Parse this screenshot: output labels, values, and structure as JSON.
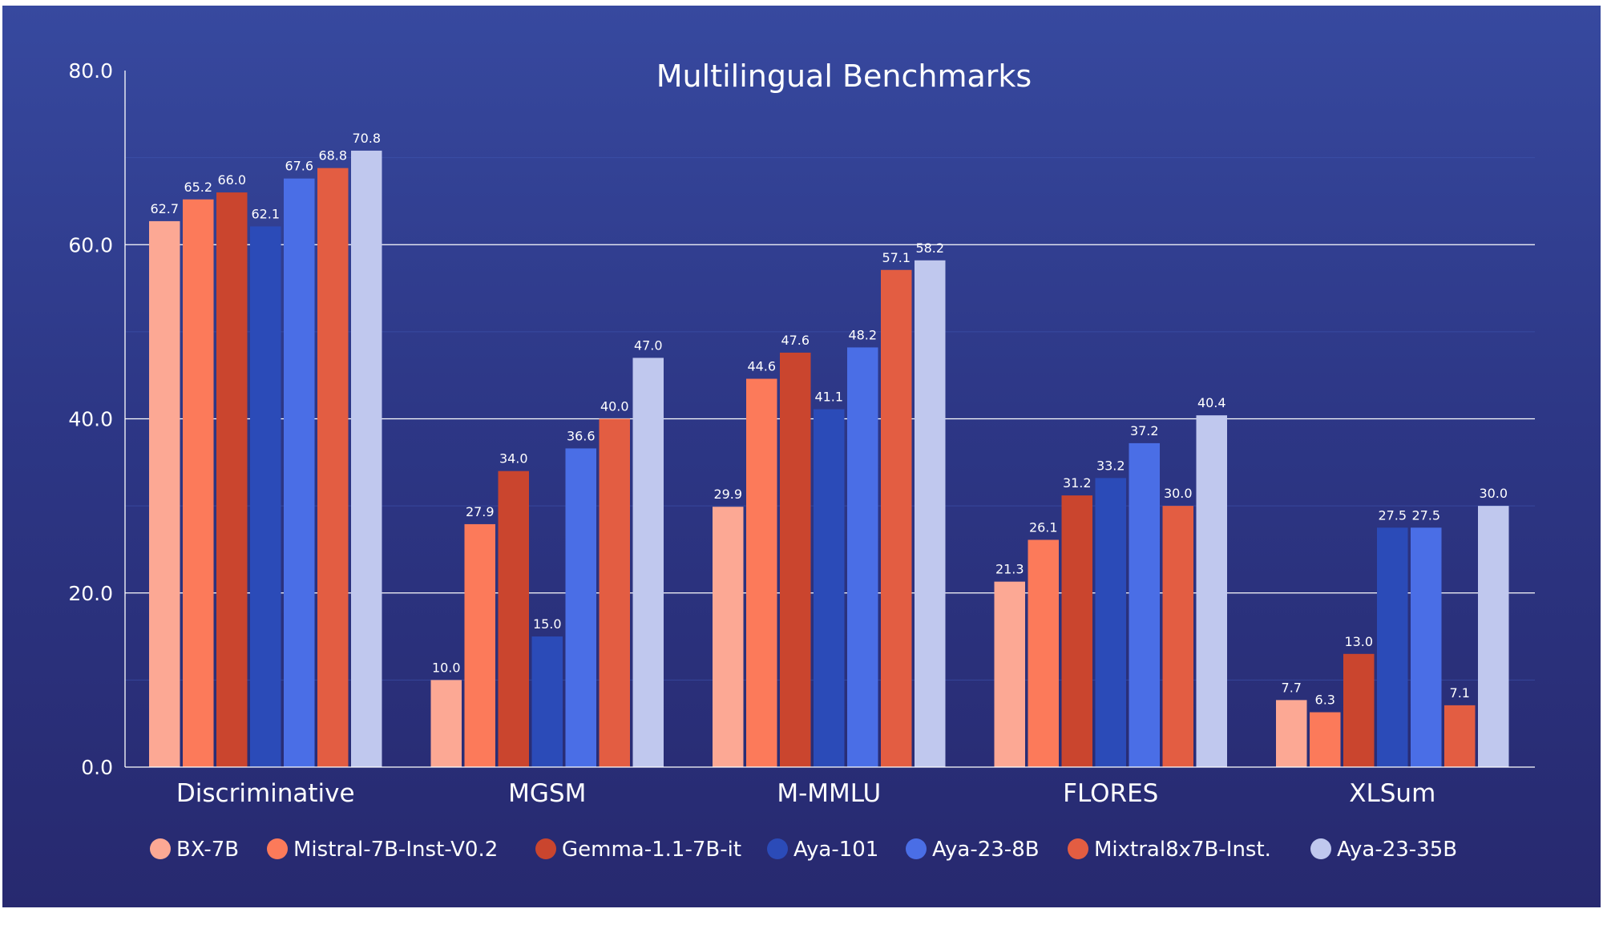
{
  "chart_data": {
    "type": "bar",
    "title": "Multilingual Benchmarks",
    "xlabel": "",
    "ylabel": "",
    "ylim": [
      0,
      80
    ],
    "yticks": [
      "0.0",
      "20.0",
      "40.0",
      "60.0",
      "80.0"
    ],
    "grid": true,
    "legend_position": "bottom",
    "categories": [
      "Discriminative",
      "MGSM",
      "M-MMLU",
      "FLORES",
      "XLSum"
    ],
    "series": [
      {
        "name": "BX-7B",
        "color": "#fca894",
        "values": [
          62.7,
          10.0,
          29.9,
          21.3,
          7.7
        ],
        "labels": [
          "62.7",
          "10.0",
          "29.9",
          "21.3",
          "7.7"
        ]
      },
      {
        "name": "Mistral-7B-Inst-V0.2",
        "color": "#fc7a5a",
        "values": [
          65.2,
          27.9,
          44.6,
          26.1,
          6.3
        ],
        "labels": [
          "65.2",
          "27.9",
          "44.6",
          "26.1",
          "6.3"
        ]
      },
      {
        "name": "Gemma-1.1-7B-it",
        "color": "#ca452e",
        "values": [
          66.0,
          34.0,
          47.6,
          31.2,
          13.0
        ],
        "labels": [
          "66.0",
          "34.0",
          "47.6",
          "31.2",
          "13.0"
        ]
      },
      {
        "name": "Aya-101",
        "color": "#2b4bb8",
        "values": [
          62.1,
          15.0,
          41.1,
          33.2,
          27.5
        ],
        "labels": [
          "62.1",
          "15.0",
          "41.1",
          "33.2",
          "27.5"
        ]
      },
      {
        "name": "Aya-23-8B",
        "color": "#4a6ee6",
        "values": [
          67.6,
          36.6,
          48.2,
          37.2,
          27.5
        ],
        "labels": [
          "67.6",
          "36.6",
          "48.2",
          "37.2",
          "27.5"
        ]
      },
      {
        "name": "Mixtral8x7B-Inst.",
        "color": "#e35d42",
        "values": [
          68.8,
          40.0,
          57.1,
          30.0,
          7.1
        ],
        "labels": [
          "68.8",
          "40.0",
          "57.1",
          "30.0",
          "7.1"
        ]
      },
      {
        "name": "Aya-23-35B",
        "color": "#c0c8ee",
        "values": [
          70.8,
          47.0,
          58.2,
          40.4,
          30.0
        ],
        "labels": [
          "70.8",
          "47.0",
          "58.2",
          "40.4",
          "30.0"
        ]
      }
    ]
  }
}
